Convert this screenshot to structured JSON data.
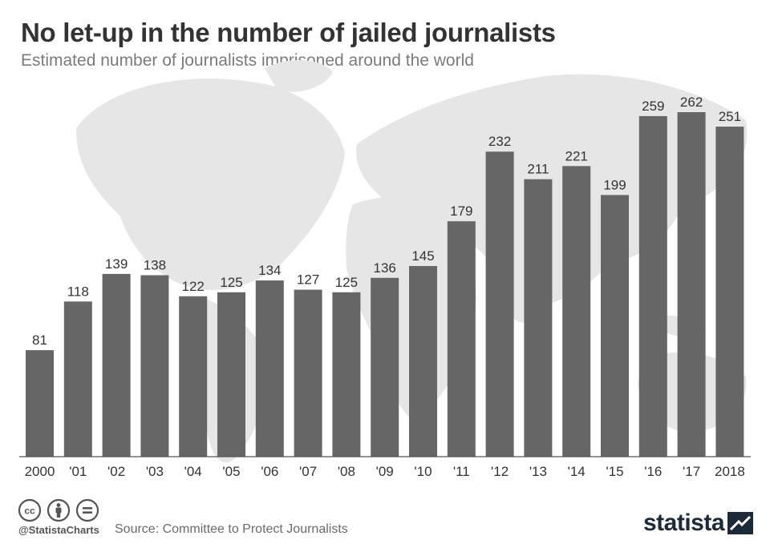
{
  "chart_data": {
    "type": "bar",
    "title": "No let-up in the number of jailed journalists",
    "subtitle": "Estimated number of journalists imprisoned around the world",
    "categories": [
      "2000",
      "'01",
      "'02",
      "'03",
      "'04",
      "'05",
      "'06",
      "'07",
      "'08",
      "'09",
      "'10",
      "'11",
      "'12",
      "'13",
      "'14",
      "'15",
      "'16",
      "'17",
      "2018"
    ],
    "values": [
      81,
      118,
      139,
      138,
      122,
      125,
      134,
      127,
      125,
      136,
      145,
      179,
      232,
      211,
      221,
      199,
      259,
      262,
      251
    ],
    "ylim": [
      0,
      262
    ],
    "grid": false,
    "legend": "none",
    "bar_color": "#666666",
    "label_color": "#333333"
  },
  "footer": {
    "handle": "@StatistaCharts",
    "source": "Source: Committee to Protect Journalists",
    "brand": "statista",
    "license_icons": [
      "cc-icon",
      "by-icon",
      "nd-icon"
    ]
  }
}
